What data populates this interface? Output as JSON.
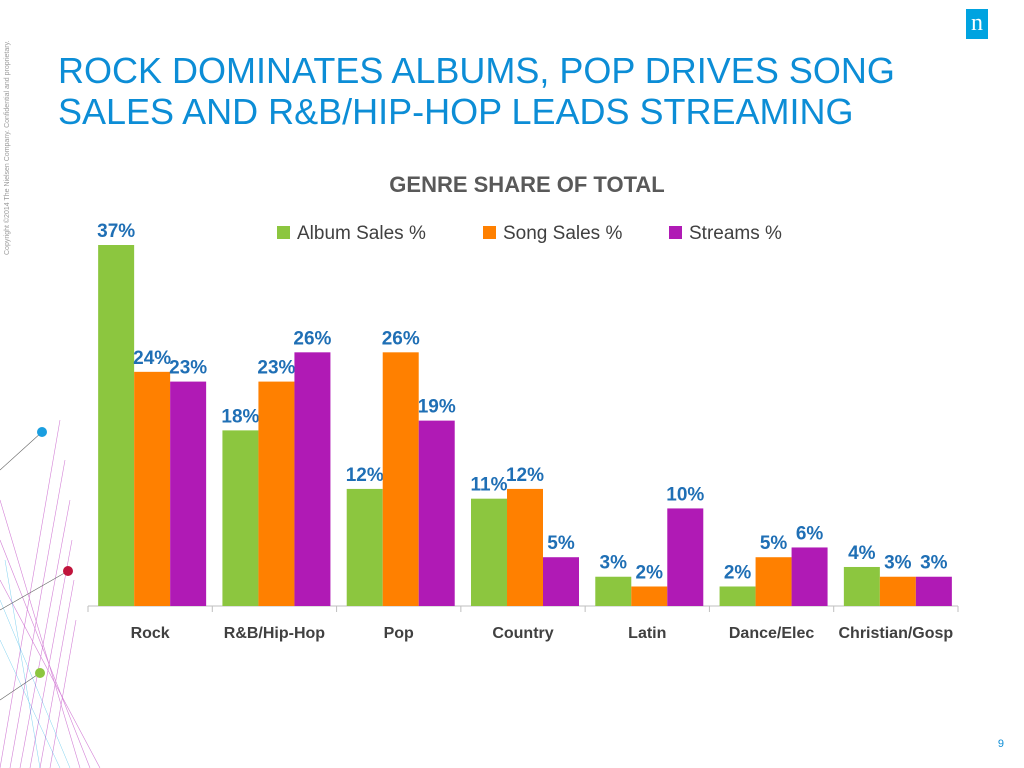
{
  "slide": {
    "title": "ROCK DOMINATES ALBUMS, POP DRIVES SONG SALES AND R&B/HIP-HOP LEADS STREAMING",
    "copyright": "Copyright ©2014 The Nielsen Company. Confidential and proprietary.",
    "logo_letter": "n",
    "page_number": "9"
  },
  "colors": {
    "title": "#0c8dd6",
    "label": "#1f6fb5",
    "album": "#8cc63f",
    "song": "#ff8000",
    "streams": "#b01ab5"
  },
  "chart_data": {
    "type": "bar",
    "title": "GENRE SHARE OF TOTAL",
    "categories": [
      "Rock",
      "R&B/Hip-Hop",
      "Pop",
      "Country",
      "Latin",
      "Dance/Elec",
      "Christian/Gosp"
    ],
    "series": [
      {
        "name": "Album Sales %",
        "values": [
          37,
          18,
          12,
          11,
          3,
          2,
          4
        ],
        "labels": [
          "37%",
          "18%",
          "12%",
          "11%",
          "3%",
          "2%",
          "4%"
        ],
        "color": "#8cc63f"
      },
      {
        "name": "Song Sales %",
        "values": [
          24,
          23,
          26,
          12,
          2,
          5,
          3
        ],
        "labels": [
          "24%",
          "23%",
          "26%",
          "12%",
          "2%",
          "5%",
          "3%"
        ],
        "color": "#ff8000"
      },
      {
        "name": "Streams %",
        "values": [
          23,
          26,
          19,
          5,
          10,
          6,
          3
        ],
        "labels": [
          "23%",
          "26%",
          "19%",
          "5%",
          "10%",
          "6%",
          "3%"
        ],
        "color": "#b01ab5"
      }
    ],
    "ylim": [
      0,
      37
    ],
    "legend_position": "top",
    "grid": false
  }
}
